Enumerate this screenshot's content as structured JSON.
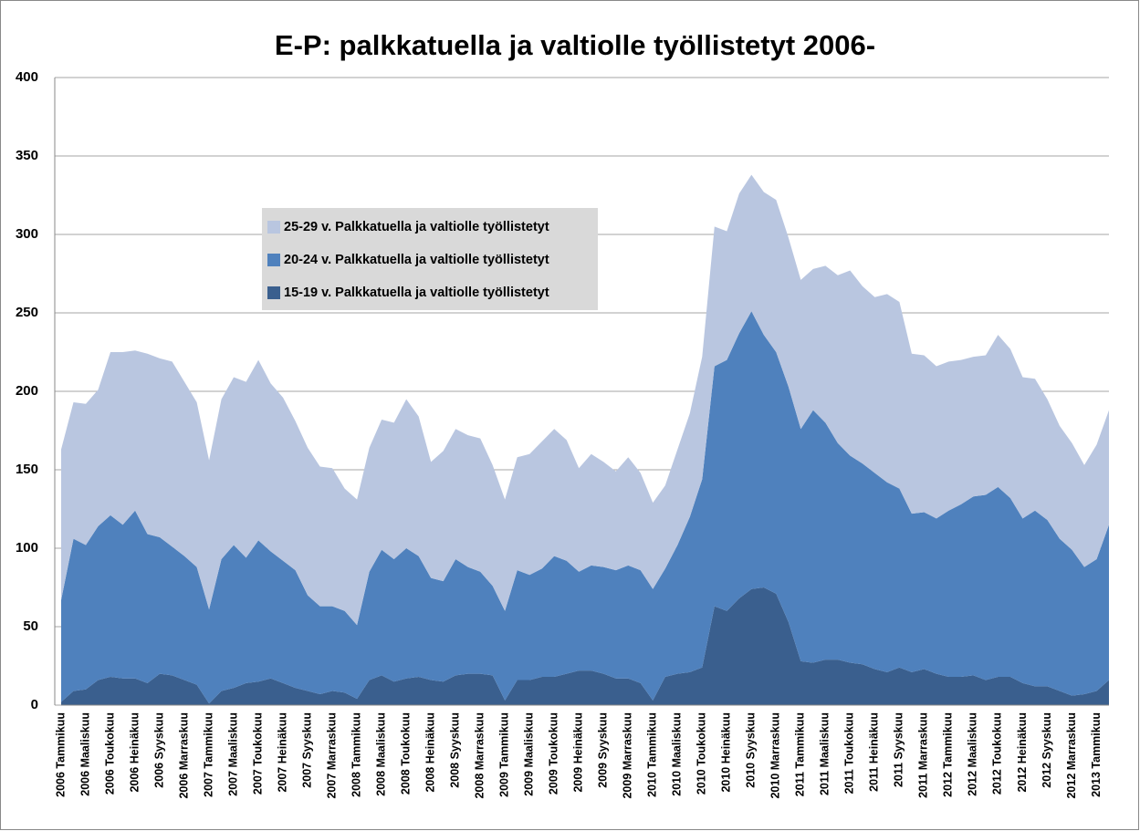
{
  "chart_data": {
    "type": "stacked_area",
    "title": "E-P: palkkatuella ja valtiolle työllistetyt 2006-",
    "categories": [
      "2006 Tammikuu",
      null,
      "2006 Maaliskuu",
      null,
      "2006 Toukokuu",
      null,
      "2006 Heinäkuu",
      null,
      "2006 Syyskuu",
      null,
      "2006 Marraskuu",
      null,
      "2007 Tammikuu",
      null,
      "2007 Maaliskuu",
      null,
      "2007 Toukokuu",
      null,
      "2007 Heinäkuu",
      null,
      "2007 Syyskuu",
      null,
      "2007 Marraskuu",
      null,
      "2008 Tammikuu",
      null,
      "2008 Maaliskuu",
      null,
      "2008 Toukokuu",
      null,
      "2008 Heinäkuu",
      null,
      "2008 Syyskuu",
      null,
      "2008 Marraskuu",
      null,
      "2009 Tammikuu",
      null,
      "2009 Maaliskuu",
      null,
      "2009 Toukokuu",
      null,
      "2009 Heinäkuu",
      null,
      "2009 Syyskuu",
      null,
      "2009 Marraskuu",
      null,
      "2010 Tammikuu",
      null,
      "2010 Maaliskuu",
      null,
      "2010 Toukokuu",
      null,
      "2010 Heinäkuu",
      null,
      "2010 Syyskuu",
      null,
      "2010 Marraskuu",
      null,
      "2011 Tammikuu",
      null,
      "2011 Maaliskuu",
      null,
      "2011 Toukokuu",
      null,
      "2011 Heinäkuu",
      null,
      "2011 Syyskuu",
      null,
      "2011 Marraskuu",
      null,
      "2012 Tammikuu",
      null,
      "2012 Maaliskuu",
      null,
      "2012 Toukokuu",
      null,
      "2012 Heinäkuu",
      null,
      "2012 Syyskuu",
      null,
      "2012 Marraskuu",
      null,
      "2013 Tammikuu",
      null
    ],
    "series": [
      {
        "name": "15-19 v. Palkkatuella ja valtiolle työllistetyt",
        "color": "#3a5f8e",
        "values": [
          2,
          9,
          10,
          16,
          18,
          17,
          17,
          14,
          20,
          19,
          16,
          13,
          1,
          9,
          11,
          14,
          15,
          17,
          14,
          11,
          9,
          7,
          9,
          8,
          4,
          16,
          19,
          15,
          17,
          18,
          16,
          15,
          19,
          20,
          20,
          19,
          3,
          16,
          16,
          18,
          18,
          20,
          22,
          22,
          20,
          17,
          17,
          14,
          3,
          18,
          20,
          21,
          24,
          63,
          60,
          68,
          74,
          75,
          71,
          53,
          28,
          27,
          29,
          29,
          27,
          26,
          23,
          21,
          24,
          21,
          23,
          20,
          18,
          18,
          19,
          16,
          18,
          18,
          14,
          12,
          12,
          9,
          6,
          7,
          9,
          16
        ]
      },
      {
        "name": "20-24 v. Palkkatuella ja valtiolle työllistetyt",
        "color": "#4f81bd",
        "values": [
          65,
          97,
          92,
          98,
          103,
          98,
          107,
          95,
          87,
          82,
          79,
          75,
          60,
          84,
          91,
          80,
          90,
          81,
          78,
          75,
          61,
          56,
          54,
          52,
          47,
          69,
          80,
          78,
          83,
          77,
          65,
          64,
          74,
          68,
          65,
          57,
          57,
          70,
          67,
          69,
          77,
          72,
          63,
          67,
          68,
          69,
          72,
          72,
          71,
          69,
          82,
          99,
          120,
          153,
          160,
          169,
          177,
          161,
          154,
          150,
          148,
          161,
          151,
          138,
          132,
          128,
          125,
          121,
          114,
          101,
          100,
          99,
          106,
          110,
          114,
          118,
          121,
          114,
          105,
          112,
          106,
          97,
          93,
          81,
          84,
          99
        ]
      },
      {
        "name": "25-29 v. Palkkatuella ja valtiolle työllistetyt",
        "color": "#b9c6e0",
        "values": [
          96,
          87,
          90,
          87,
          104,
          110,
          102,
          115,
          114,
          118,
          111,
          105,
          95,
          102,
          107,
          112,
          115,
          107,
          104,
          95,
          94,
          89,
          88,
          78,
          80,
          79,
          83,
          87,
          95,
          89,
          74,
          83,
          83,
          84,
          85,
          77,
          71,
          72,
          77,
          81,
          81,
          77,
          66,
          71,
          67,
          63,
          69,
          62,
          55,
          53,
          61,
          66,
          78,
          89,
          82,
          89,
          87,
          91,
          97,
          95,
          95,
          90,
          100,
          107,
          118,
          113,
          112,
          120,
          119,
          102,
          100,
          97,
          95,
          92,
          89,
          89,
          97,
          95,
          90,
          84,
          77,
          72,
          68,
          65,
          73,
          73
        ]
      }
    ],
    "ylim": [
      0,
      400
    ],
    "yticks": [
      0,
      50,
      100,
      150,
      200,
      250,
      300,
      350,
      400
    ],
    "grid": true
  }
}
